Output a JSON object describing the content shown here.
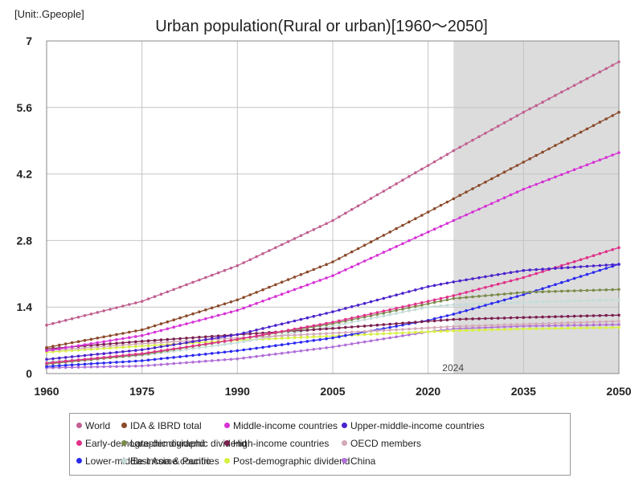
{
  "chart_data": {
    "type": "line",
    "title": "Urban population(Rural or urban)[1960～2050]",
    "unit_label": "[Unit:.Gpeople]",
    "xlabel": "",
    "ylabel": "",
    "xlim": [
      1960,
      2050
    ],
    "ylim": [
      0,
      7
    ],
    "x_ticks": [
      1960,
      1975,
      1990,
      2005,
      2020,
      2035,
      2050
    ],
    "y_ticks": [
      0,
      1.4,
      2.8,
      4.2,
      5.6,
      7
    ],
    "y_tick_labels": [
      "0",
      "1.4",
      "2.8",
      "4.2",
      "5.6",
      "7"
    ],
    "grid": true,
    "forecast_shading": {
      "start": 2024,
      "end": 2050,
      "label": "2024"
    },
    "series": [
      {
        "name": "World",
        "color": "#c06090",
        "points": [
          [
            1960,
            1.02
          ],
          [
            1975,
            1.52
          ],
          [
            1990,
            2.27
          ],
          [
            2005,
            3.22
          ],
          [
            2020,
            4.38
          ],
          [
            2024,
            4.69
          ],
          [
            2035,
            5.5
          ],
          [
            2050,
            6.56
          ]
        ]
      },
      {
        "name": "IDA & IBRD total",
        "color": "#8b4a2b",
        "points": [
          [
            1960,
            0.55
          ],
          [
            1975,
            0.92
          ],
          [
            1990,
            1.55
          ],
          [
            2005,
            2.35
          ],
          [
            2020,
            3.4
          ],
          [
            2024,
            3.68
          ],
          [
            2035,
            4.45
          ],
          [
            2050,
            5.5
          ]
        ]
      },
      {
        "name": "Middle-income countries",
        "color": "#d632d6",
        "points": [
          [
            1960,
            0.48
          ],
          [
            1975,
            0.8
          ],
          [
            1990,
            1.33
          ],
          [
            2005,
            2.06
          ],
          [
            2020,
            2.98
          ],
          [
            2024,
            3.22
          ],
          [
            2035,
            3.88
          ],
          [
            2050,
            4.65
          ]
        ]
      },
      {
        "name": "Upper-middle-income countries",
        "color": "#4b22cc",
        "points": [
          [
            1960,
            0.3
          ],
          [
            1975,
            0.5
          ],
          [
            1990,
            0.82
          ],
          [
            2005,
            1.3
          ],
          [
            2020,
            1.83
          ],
          [
            2024,
            1.93
          ],
          [
            2035,
            2.17
          ],
          [
            2050,
            2.3
          ]
        ]
      },
      {
        "name": "Early-demographic dividend",
        "color": "#e0308a",
        "points": [
          [
            1960,
            0.22
          ],
          [
            1975,
            0.42
          ],
          [
            1990,
            0.72
          ],
          [
            2005,
            1.08
          ],
          [
            2020,
            1.52
          ],
          [
            2024,
            1.64
          ],
          [
            2035,
            2.02
          ],
          [
            2050,
            2.65
          ]
        ]
      },
      {
        "name": "Late-demographic dividend",
        "color": "#7a8a4a",
        "points": [
          [
            1960,
            0.2
          ],
          [
            1975,
            0.4
          ],
          [
            1990,
            0.72
          ],
          [
            2005,
            1.05
          ],
          [
            2020,
            1.47
          ],
          [
            2024,
            1.58
          ],
          [
            2035,
            1.71
          ],
          [
            2050,
            1.77
          ]
        ]
      },
      {
        "name": "High-income countries",
        "color": "#7a1e4e",
        "points": [
          [
            1960,
            0.52
          ],
          [
            1975,
            0.68
          ],
          [
            1990,
            0.82
          ],
          [
            2005,
            0.95
          ],
          [
            2020,
            1.1
          ],
          [
            2024,
            1.14
          ],
          [
            2035,
            1.18
          ],
          [
            2050,
            1.23
          ]
        ]
      },
      {
        "name": "OECD members",
        "color": "#d4a8b8",
        "points": [
          [
            1960,
            0.48
          ],
          [
            1975,
            0.63
          ],
          [
            1990,
            0.75
          ],
          [
            2005,
            0.85
          ],
          [
            2020,
            0.96
          ],
          [
            2024,
            0.99
          ],
          [
            2035,
            1.04
          ],
          [
            2050,
            1.1
          ]
        ]
      },
      {
        "name": "Lower-middle-income countries",
        "color": "#2a2af0",
        "points": [
          [
            1960,
            0.15
          ],
          [
            1975,
            0.27
          ],
          [
            1990,
            0.48
          ],
          [
            2005,
            0.75
          ],
          [
            2020,
            1.12
          ],
          [
            2024,
            1.25
          ],
          [
            2035,
            1.66
          ],
          [
            2050,
            2.3
          ]
        ]
      },
      {
        "name": "East Asia & Pacific",
        "color": "#c4dcd8",
        "points": [
          [
            1960,
            0.25
          ],
          [
            1975,
            0.38
          ],
          [
            1990,
            0.65
          ],
          [
            2005,
            1.0
          ],
          [
            2020,
            1.4
          ],
          [
            2024,
            1.45
          ],
          [
            2035,
            1.5
          ],
          [
            2050,
            1.55
          ]
        ]
      },
      {
        "name": "Post-demographic dividend",
        "color": "#d8f040",
        "points": [
          [
            1960,
            0.45
          ],
          [
            1975,
            0.58
          ],
          [
            1990,
            0.7
          ],
          [
            2005,
            0.79
          ],
          [
            2020,
            0.88
          ],
          [
            2024,
            0.9
          ],
          [
            2035,
            0.94
          ],
          [
            2050,
            0.97
          ]
        ]
      },
      {
        "name": "China",
        "color": "#b070d8",
        "points": [
          [
            1960,
            0.12
          ],
          [
            1975,
            0.16
          ],
          [
            1990,
            0.31
          ],
          [
            2005,
            0.56
          ],
          [
            2020,
            0.88
          ],
          [
            2024,
            0.94
          ],
          [
            2035,
            1.0
          ],
          [
            2050,
            1.03
          ]
        ]
      }
    ]
  }
}
